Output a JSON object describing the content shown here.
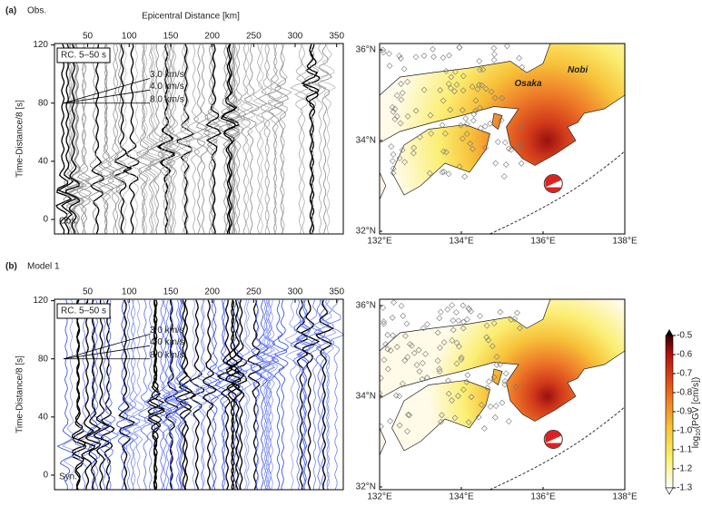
{
  "panels": [
    {
      "label": "(a)",
      "title": "Obs.",
      "record_section": {
        "xlabel": "Epicentral Distance [km]",
        "xlim": [
          10,
          358
        ],
        "xticks": [
          50,
          100,
          150,
          200,
          250,
          300,
          350
        ],
        "ylabel": "Time-Distance/8 [s]",
        "ylim": [
          -10,
          121
        ],
        "yticks": [
          0,
          40,
          80,
          120
        ],
        "filter_label": "RC. 5–50 s",
        "velocity_labels": [
          "3.0 km/s",
          "4.0 km/s",
          "8.0 km/s"
        ],
        "trace_label": "Obs."
      },
      "map": {
        "place_labels": [
          "Osaka",
          "Nobi"
        ],
        "latlim": [
          31.94,
          36.14
        ],
        "latticks": [
          {
            "value": 32,
            "label": "32°N"
          },
          {
            "value": 34,
            "label": "34°N"
          },
          {
            "value": 36,
            "label": "36°N"
          }
        ],
        "lonlim": [
          132,
          138
        ],
        "lonticks": [
          {
            "value": 132,
            "label": "132°E"
          },
          {
            "value": 134,
            "label": "134°E"
          },
          {
            "value": 136,
            "label": "136°E"
          },
          {
            "value": 138,
            "label": "138°E"
          }
        ]
      }
    },
    {
      "label": "(b)",
      "title": "Model 1",
      "record_section": {
        "xlim": [
          10,
          358
        ],
        "xticks": [
          50,
          100,
          150,
          200,
          250,
          300,
          350
        ],
        "ylabel": "Time-Distance/8 [s]",
        "ylim": [
          -10,
          121
        ],
        "yticks": [
          0,
          40,
          80,
          120
        ],
        "filter_label": "RC. 5–50 s",
        "velocity_labels": [
          "3.0 km/s",
          "4.0 km/s",
          "8.0 km/s"
        ],
        "trace_label": "Syn."
      },
      "map": {
        "latlim": [
          31.94,
          36.14
        ],
        "latticks": [
          {
            "value": 32,
            "label": "32°N"
          },
          {
            "value": 34,
            "label": "34°N"
          },
          {
            "value": 36,
            "label": "36°N"
          }
        ],
        "lonlim": [
          132,
          138
        ],
        "lonticks": [
          {
            "value": 132,
            "label": "132°E"
          },
          {
            "value": 134,
            "label": "134°E"
          },
          {
            "value": 136,
            "label": "136°E"
          },
          {
            "value": 138,
            "label": "138°E"
          }
        ]
      }
    }
  ],
  "colorbar": {
    "label_main": "log",
    "label_sub": "10",
    "label_rest": "(PGV [cm/s])",
    "lim": [
      -1.3,
      -0.5
    ],
    "ticks": [
      -0.5,
      -0.6,
      -0.7,
      -0.8,
      -0.9,
      {
        "value": -1,
        "label": "-1.0"
      },
      -1.1,
      -1.2,
      -1.3
    ]
  }
}
